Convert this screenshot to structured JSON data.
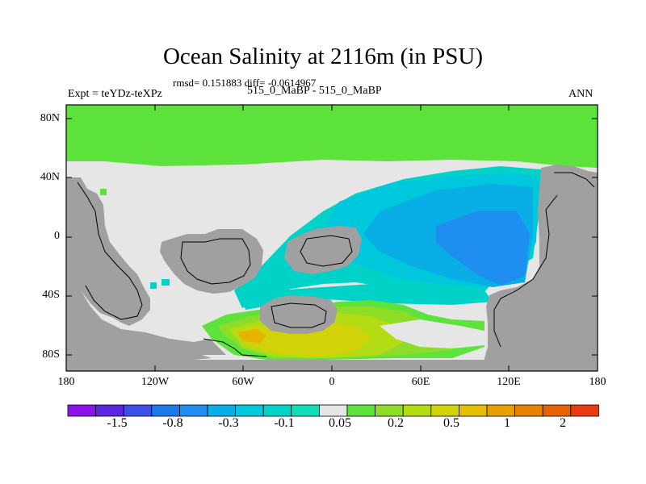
{
  "title": "Ocean Salinity at 2116m (in PSU)",
  "stats": "rmsd= 0.151883  diff= -0.0614967",
  "experiment": "Expt = teYDz-teXPz",
  "comparison": "515_0_MaBP - 515_0_MaBP",
  "season": "ANN",
  "colors": {
    "land": "#a0a0a0",
    "zero_band": "#e6e6e6",
    "arctic_green": "#5ee23c",
    "cyan_light": "#00d2c8",
    "cyan": "#00c8dc",
    "blue_light": "#0aaee6",
    "blue": "#1e8ef0",
    "yellow_green": "#b4dc14",
    "yellow": "#d2d20a",
    "orange_yellow": "#e6b400"
  },
  "latitude_labels": [
    "80N",
    "40N",
    "0",
    "40S",
    "80S"
  ],
  "longitude_labels": [
    "180",
    "120W",
    "60W",
    "0",
    "60E",
    "120E",
    "180"
  ],
  "colorbar": {
    "colors": [
      "#8c14e6",
      "#5a28dc",
      "#3c50e6",
      "#1e78e6",
      "#1e8ef0",
      "#0aaee6",
      "#00c8dc",
      "#00d2c8",
      "#14dcb4",
      "#e6e6e6",
      "#5ee23c",
      "#8cdc28",
      "#b4dc14",
      "#d2d20a",
      "#e6be00",
      "#e6a000",
      "#e68200",
      "#e66400",
      "#e63c14"
    ],
    "labels": [
      "-1.5",
      "-0.8",
      "-0.3",
      "-0.1",
      "0.05",
      "0.2",
      "0.5",
      "1",
      "2"
    ]
  }
}
